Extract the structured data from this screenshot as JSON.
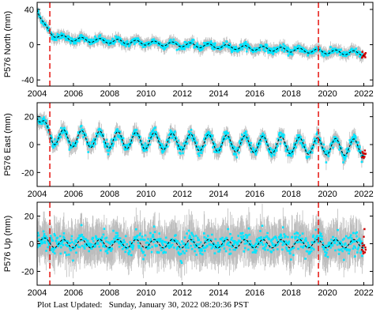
{
  "footer": {
    "label": "Plot Last Updated:",
    "timestamp": "Sunday, January 30, 2022 08:20:36 PST"
  },
  "colors": {
    "scatter": "#00e5ff",
    "error_bar": "#bdbdbd",
    "model": "#000000",
    "event_line": "#e8231d",
    "recent_points": "#cc0000"
  },
  "chart_data": [
    {
      "type": "scatter",
      "ylabel": "P576 North (mm)",
      "xlim": [
        2004,
        2022.5
      ],
      "ylim": [
        -47,
        48
      ],
      "x_ticks": [
        2004,
        2006,
        2008,
        2010,
        2012,
        2014,
        2016,
        2018,
        2020,
        2022
      ],
      "y_ticks": [
        -40,
        0,
        40
      ],
      "event_lines": [
        2004.7,
        2019.5
      ],
      "start": 42,
      "step": -34,
      "tau": 0.45,
      "trend": -1.0,
      "seasonal_amp": 2.5,
      "scatter": 4,
      "error": 6
    },
    {
      "type": "scatter",
      "ylabel": "P576 East (mm)",
      "xlim": [
        2004,
        2022.5
      ],
      "ylim": [
        -30,
        30
      ],
      "x_ticks": [
        2004,
        2006,
        2008,
        2010,
        2012,
        2014,
        2016,
        2018,
        2020,
        2022
      ],
      "y_ticks": [
        -20,
        0,
        20
      ],
      "event_lines": [
        2004.7,
        2019.5
      ],
      "start": 25,
      "step": -20,
      "tau": 0.35,
      "trend": -0.4,
      "seasonal_amp": 6,
      "scatter": 4,
      "error": 5
    },
    {
      "type": "scatter",
      "ylabel": "P576 Up (mm)",
      "xlim": [
        2004,
        2022.5
      ],
      "ylim": [
        -30,
        30
      ],
      "x_ticks": [
        2004,
        2006,
        2008,
        2010,
        2012,
        2014,
        2016,
        2018,
        2020,
        2022
      ],
      "y_ticks": [
        -20,
        0,
        20
      ],
      "event_lines": [
        2004.7,
        2019.5
      ],
      "start": 5,
      "step": -5,
      "tau": 0.3,
      "trend": 0,
      "seasonal_amp": 3,
      "scatter": 8,
      "error": 14
    }
  ]
}
